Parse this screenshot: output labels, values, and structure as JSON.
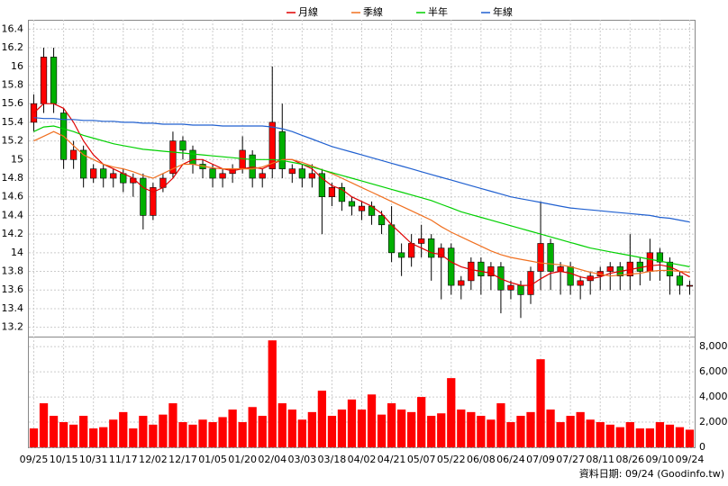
{
  "chart_data": {
    "type": "candlestick",
    "categories": [
      "09/25",
      null,
      null,
      "10/15",
      null,
      null,
      "10/31",
      null,
      null,
      "11/17",
      null,
      null,
      "12/02",
      null,
      null,
      "12/17",
      null,
      null,
      "01/05",
      null,
      null,
      "01/20",
      null,
      null,
      "02/04",
      null,
      null,
      "03/03",
      null,
      null,
      "03/18",
      null,
      null,
      "04/02",
      null,
      null,
      "04/21",
      null,
      null,
      "05/07",
      null,
      null,
      "05/22",
      null,
      null,
      "06/08",
      null,
      null,
      "06/24",
      null,
      null,
      "07/09",
      null,
      null,
      "07/27",
      null,
      null,
      "08/11",
      null,
      null,
      "08/26",
      null,
      null,
      "09/10",
      null,
      null,
      "09/24"
    ],
    "open": [
      15.4,
      15.6,
      16.1,
      15.5,
      15.0,
      15.1,
      14.8,
      14.9,
      14.8,
      14.85,
      14.75,
      14.8,
      14.4,
      14.7,
      14.85,
      15.2,
      15.1,
      14.95,
      14.9,
      14.8,
      14.85,
      14.9,
      15.05,
      14.8,
      14.9,
      15.3,
      14.85,
      14.9,
      14.8,
      14.85,
      14.6,
      14.7,
      14.55,
      14.45,
      14.5,
      14.4,
      14.3,
      14.0,
      13.95,
      14.1,
      14.15,
      13.95,
      14.05,
      13.65,
      13.7,
      13.9,
      13.75,
      13.85,
      13.6,
      13.65,
      13.55,
      13.8,
      14.1,
      13.8,
      13.85,
      13.65,
      13.7,
      13.75,
      13.8,
      13.85,
      13.75,
      13.9,
      13.8,
      14.0,
      13.9,
      13.75,
      13.65
    ],
    "high": [
      15.7,
      16.2,
      16.2,
      15.55,
      15.2,
      15.15,
      14.95,
      14.95,
      14.9,
      14.9,
      14.85,
      14.85,
      14.75,
      14.85,
      15.3,
      15.25,
      15.15,
      15.0,
      14.95,
      14.9,
      14.95,
      15.25,
      15.1,
      14.9,
      16.0,
      15.6,
      14.95,
      14.95,
      14.95,
      14.9,
      14.75,
      14.75,
      14.6,
      14.55,
      14.55,
      14.45,
      14.5,
      14.1,
      14.2,
      14.3,
      14.2,
      14.1,
      14.1,
      13.75,
      13.95,
      13.95,
      13.9,
      13.9,
      13.7,
      13.7,
      13.85,
      14.55,
      14.15,
      13.9,
      13.9,
      13.75,
      13.8,
      13.85,
      13.9,
      13.9,
      14.2,
      13.95,
      14.15,
      14.05,
      13.95,
      13.8,
      13.7
    ],
    "low": [
      15.3,
      15.5,
      15.5,
      14.9,
      14.9,
      14.7,
      14.75,
      14.7,
      14.7,
      14.65,
      14.6,
      14.25,
      14.35,
      14.65,
      14.8,
      15.0,
      14.85,
      14.8,
      14.7,
      14.7,
      14.75,
      14.85,
      14.7,
      14.7,
      14.8,
      14.8,
      14.75,
      14.7,
      14.7,
      14.2,
      14.5,
      14.45,
      14.4,
      14.35,
      14.3,
      14.2,
      13.9,
      13.75,
      13.85,
      13.95,
      13.7,
      13.5,
      13.55,
      13.5,
      13.6,
      13.55,
      13.6,
      13.35,
      13.5,
      13.3,
      13.45,
      13.6,
      13.6,
      13.55,
      13.55,
      13.5,
      13.55,
      13.6,
      13.6,
      13.6,
      13.6,
      13.65,
      13.7,
      13.7,
      13.55,
      13.55,
      13.55
    ],
    "close": [
      15.6,
      16.1,
      15.6,
      15.0,
      15.1,
      14.8,
      14.9,
      14.8,
      14.85,
      14.75,
      14.8,
      14.4,
      14.7,
      14.8,
      15.2,
      15.1,
      14.95,
      14.9,
      14.8,
      14.85,
      14.9,
      15.1,
      14.8,
      14.85,
      15.4,
      14.9,
      14.9,
      14.8,
      14.85,
      14.6,
      14.7,
      14.55,
      14.5,
      14.5,
      14.4,
      14.3,
      14.0,
      13.95,
      14.1,
      14.15,
      13.95,
      14.05,
      13.65,
      13.7,
      13.9,
      13.75,
      13.85,
      13.6,
      13.65,
      13.55,
      13.8,
      14.1,
      13.8,
      13.85,
      13.65,
      13.7,
      13.75,
      13.8,
      13.85,
      13.75,
      13.9,
      13.8,
      14.0,
      13.9,
      13.75,
      13.65,
      13.65
    ],
    "up_color": "#ff0000",
    "down_color": "#00b000",
    "ylim": [
      13.1,
      16.5
    ],
    "yticks": [
      13.2,
      13.4,
      13.6,
      13.8,
      14,
      14.2,
      14.4,
      14.6,
      14.8,
      15,
      15.2,
      15.4,
      15.6,
      15.8,
      16,
      16.2,
      16.4
    ],
    "grid": true,
    "legend": "top",
    "series": [
      {
        "name": "月線",
        "color": "#e00000",
        "values": [
          15.5,
          15.6,
          15.6,
          15.55,
          15.4,
          15.2,
          15.05,
          14.95,
          14.9,
          14.85,
          14.8,
          14.7,
          14.65,
          14.7,
          14.8,
          14.95,
          15.0,
          15.0,
          14.95,
          14.9,
          14.88,
          14.9,
          14.92,
          14.9,
          14.95,
          15.0,
          15.0,
          14.95,
          14.9,
          14.8,
          14.72,
          14.68,
          14.6,
          14.55,
          14.5,
          14.42,
          14.3,
          14.2,
          14.1,
          14.05,
          14.0,
          13.98,
          13.9,
          13.85,
          13.82,
          13.8,
          13.78,
          13.72,
          13.68,
          13.65,
          13.65,
          13.72,
          13.78,
          13.8,
          13.78,
          13.74,
          13.72,
          13.74,
          13.78,
          13.8,
          13.82,
          13.84,
          13.86,
          13.87,
          13.85,
          13.8,
          13.74
        ]
      },
      {
        "name": "季線",
        "color": "#f07020",
        "values": [
          15.2,
          15.25,
          15.3,
          15.25,
          15.15,
          15.05,
          15.0,
          14.95,
          14.92,
          14.9,
          14.87,
          14.83,
          14.8,
          14.85,
          14.9,
          14.95,
          14.95,
          14.93,
          14.91,
          14.9,
          14.9,
          14.9,
          14.9,
          14.92,
          14.96,
          15.0,
          15.0,
          14.97,
          14.93,
          14.89,
          14.85,
          14.8,
          14.75,
          14.7,
          14.65,
          14.6,
          14.55,
          14.5,
          14.45,
          14.4,
          14.35,
          14.28,
          14.22,
          14.17,
          14.12,
          14.07,
          14.02,
          13.98,
          13.95,
          13.93,
          13.91,
          13.89,
          13.88,
          13.87,
          13.85,
          13.82,
          13.79,
          13.77,
          13.75,
          13.76,
          13.77,
          13.78,
          13.8,
          13.81,
          13.81,
          13.8,
          13.79
        ]
      },
      {
        "name": "半年",
        "color": "#00d000",
        "values": [
          15.3,
          15.35,
          15.36,
          15.33,
          15.3,
          15.26,
          15.23,
          15.2,
          15.17,
          15.15,
          15.13,
          15.11,
          15.1,
          15.09,
          15.08,
          15.07,
          15.06,
          15.05,
          15.04,
          15.03,
          15.02,
          15.01,
          15.0,
          15.0,
          15.0,
          14.99,
          14.97,
          14.95,
          14.92,
          14.89,
          14.86,
          14.83,
          14.8,
          14.77,
          14.74,
          14.71,
          14.68,
          14.65,
          14.62,
          14.59,
          14.56,
          14.52,
          14.48,
          14.44,
          14.41,
          14.38,
          14.35,
          14.32,
          14.29,
          14.26,
          14.23,
          14.2,
          14.17,
          14.14,
          14.11,
          14.08,
          14.05,
          14.03,
          14.01,
          13.99,
          13.97,
          13.95,
          13.93,
          13.91,
          13.89,
          13.87,
          13.85
        ]
      },
      {
        "name": "年線",
        "color": "#2060d0",
        "values": [
          15.45,
          15.44,
          15.44,
          15.43,
          15.43,
          15.42,
          15.42,
          15.41,
          15.41,
          15.4,
          15.4,
          15.39,
          15.39,
          15.38,
          15.38,
          15.38,
          15.37,
          15.37,
          15.37,
          15.36,
          15.36,
          15.36,
          15.36,
          15.36,
          15.35,
          15.33,
          15.3,
          15.26,
          15.22,
          15.18,
          15.14,
          15.11,
          15.08,
          15.05,
          15.02,
          14.99,
          14.96,
          14.93,
          14.9,
          14.87,
          14.84,
          14.81,
          14.78,
          14.75,
          14.72,
          14.69,
          14.66,
          14.63,
          14.6,
          14.58,
          14.56,
          14.54,
          14.52,
          14.5,
          14.48,
          14.47,
          14.46,
          14.45,
          14.44,
          14.43,
          14.42,
          14.41,
          14.4,
          14.38,
          14.37,
          14.35,
          14.33
        ]
      }
    ],
    "volume": {
      "color": "#ff0000",
      "values": [
        1500,
        3500,
        2500,
        2000,
        1800,
        2500,
        1500,
        1600,
        2200,
        2800,
        1500,
        2500,
        1800,
        2600,
        3500,
        2000,
        1800,
        2200,
        2000,
        2400,
        3000,
        2000,
        3200,
        2500,
        8500,
        3500,
        3000,
        2200,
        2800,
        4500,
        2500,
        3000,
        3800,
        3000,
        4200,
        2600,
        3500,
        3000,
        2800,
        4000,
        2500,
        2700,
        5500,
        3000,
        2800,
        2500,
        2200,
        3500,
        2000,
        2500,
        2800,
        7000,
        3000,
        2000,
        2500,
        2800,
        2200,
        2000,
        1800,
        1600,
        2000,
        1500,
        1500,
        2000,
        1800,
        1600,
        1400
      ],
      "ylim": [
        0,
        8800
      ],
      "yticks": [
        0,
        {
          "value": 2000,
          "label": "2,000"
        },
        {
          "value": 4000,
          "label": "4,000"
        },
        {
          "value": 6000,
          "label": "6,000"
        },
        {
          "value": 8000,
          "label": "8,000"
        }
      ]
    },
    "source": "資料日期: 09/24 (Goodinfo.tw)"
  }
}
